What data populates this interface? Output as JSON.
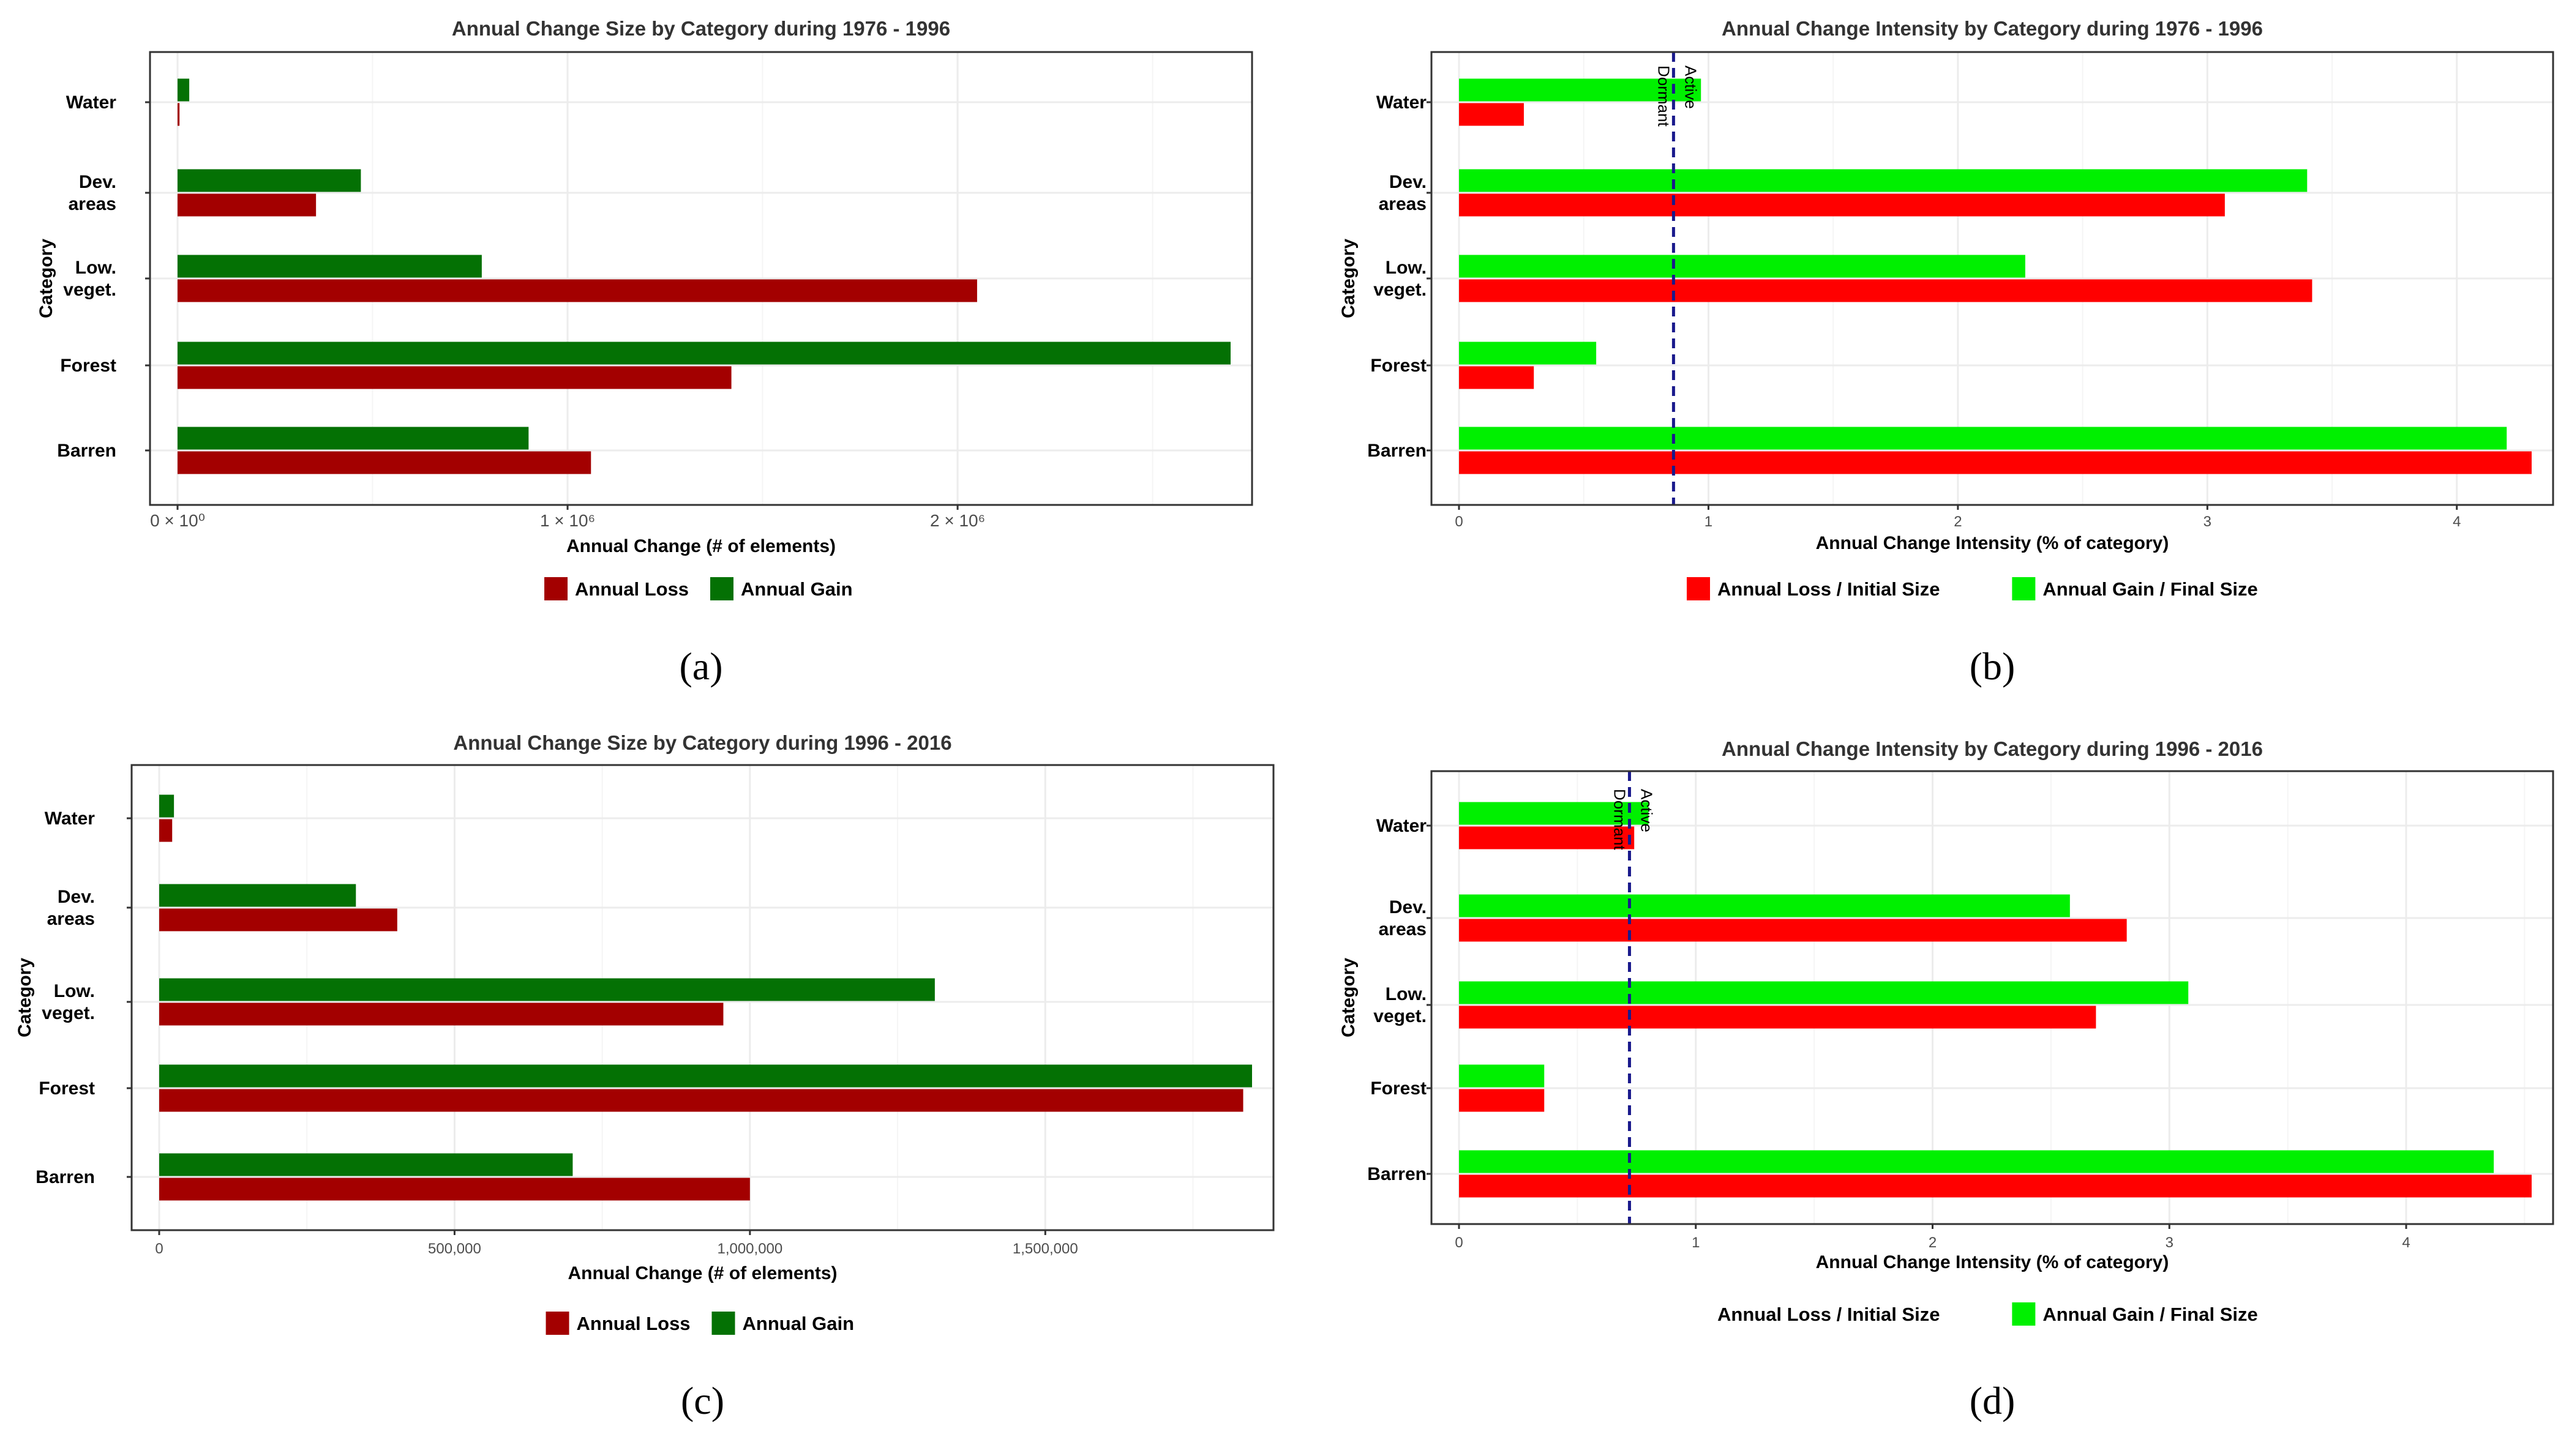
{
  "colors": {
    "size_loss": "#a30000",
    "size_gain": "#047104",
    "int_loss": "#ff0000",
    "int_gain": "#00f000",
    "uniform_line": "#1a1a8c",
    "grid": "#ececec",
    "frame": "#333333"
  },
  "chart_data": [
    {
      "type": "bar",
      "orientation": "horizontal",
      "title": "Annual Change Size by Category during  1976 - 1996",
      "xlabel": "Annual Change (# of elements)",
      "ylabel": "Category",
      "categories": [
        "Water",
        "Dev.\nareas",
        "Low.\nveget.",
        "Forest",
        "Barren"
      ],
      "series": [
        {
          "name": "Annual Gain",
          "values": [
            30000,
            470000,
            780000,
            2700000,
            900000
          ]
        },
        {
          "name": "Annual Loss",
          "values": [
            5000,
            355000,
            2050000,
            1420000,
            1060000
          ]
        }
      ],
      "xlim": [
        0,
        2700000
      ],
      "xticks": [
        0,
        1000000,
        2000000
      ],
      "xtick_labels": [
        "0 × 10⁰",
        "1 × 10⁶",
        "2 × 10⁶"
      ],
      "legend": [
        "Annual Loss",
        "Annual Gain"
      ],
      "caption": "(a)"
    },
    {
      "type": "bar",
      "orientation": "horizontal",
      "title": "Annual Change Intensity by Category during  1976 - 1996",
      "xlabel": "Annual Change Intensity (% of category)",
      "ylabel": "Category",
      "categories": [
        "Water",
        "Dev.\nareas",
        "Low.\nveget.",
        "Forest",
        "Barren"
      ],
      "series": [
        {
          "name": "Annual Gain / Final Size",
          "values": [
            0.97,
            3.4,
            2.27,
            0.55,
            4.2
          ]
        },
        {
          "name": "Annual Loss / Initial Size",
          "values": [
            0.26,
            3.07,
            3.42,
            0.3,
            4.3
          ]
        }
      ],
      "xlim": [
        0,
        4.3
      ],
      "xticks": [
        0,
        1,
        2,
        3,
        4
      ],
      "xtick_labels": [
        "0",
        "1",
        "2",
        "3",
        "4"
      ],
      "uniform_line": 0.86,
      "uniform_labels": [
        "Dormant",
        "Active"
      ],
      "legend": [
        "Annual Loss / Initial Size",
        "Annual Gain / Final Size"
      ],
      "caption": "(b)"
    },
    {
      "type": "bar",
      "orientation": "horizontal",
      "title": "Annual Change Size by Category during  1996 - 2016",
      "xlabel": "Annual Change (# of elements)",
      "ylabel": "Category",
      "categories": [
        "Water",
        "Dev.\nareas",
        "Low.\nveget.",
        "Forest",
        "Barren"
      ],
      "series": [
        {
          "name": "Annual Gain",
          "values": [
            25000,
            333000,
            1313000,
            1850000,
            700000
          ]
        },
        {
          "name": "Annual Loss",
          "values": [
            22000,
            403000,
            955000,
            1835000,
            1000000
          ]
        }
      ],
      "xlim": [
        0,
        1850000
      ],
      "xticks": [
        0,
        500000,
        1000000,
        1500000
      ],
      "xtick_labels": [
        "0",
        "500,000",
        "1,000,000",
        "1,500,000"
      ],
      "legend": [
        "Annual Loss",
        "Annual Gain"
      ],
      "caption": "(c)"
    },
    {
      "type": "bar",
      "orientation": "horizontal",
      "title": "Annual Change Intensity by Category during  1996 - 2016",
      "xlabel": "Annual Change Intensity (% of category)",
      "ylabel": "Category",
      "categories": [
        "Water",
        "Dev.\nareas",
        "Low.\nveget.",
        "Forest",
        "Barren"
      ],
      "series": [
        {
          "name": "Annual Gain / Final Size",
          "values": [
            0.8,
            2.58,
            3.08,
            0.36,
            4.37
          ]
        },
        {
          "name": "Annual Loss / Initial Size",
          "values": [
            0.74,
            2.82,
            2.69,
            0.36,
            4.53
          ]
        }
      ],
      "xlim": [
        0,
        4.53
      ],
      "xticks": [
        0,
        1,
        2,
        3,
        4
      ],
      "xtick_labels": [
        "0",
        "1",
        "2",
        "3",
        "4"
      ],
      "uniform_line": 0.72,
      "uniform_labels": [
        "Dormant",
        "Active"
      ],
      "legend": [
        "Annual Loss / Initial Size",
        "Annual Gain / Final Size"
      ],
      "caption": "(d)"
    }
  ]
}
